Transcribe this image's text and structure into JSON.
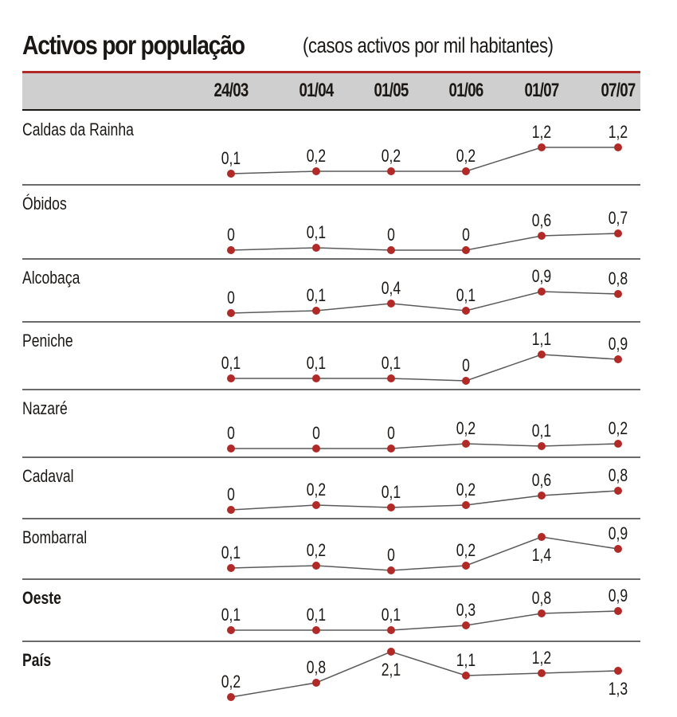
{
  "chart_data": {
    "type": "line",
    "title": "Activos por população",
    "subtitle": "(casos activos por mil habitantes)",
    "categories": [
      "24/03",
      "01/04",
      "01/05",
      "01/06",
      "01/07",
      "07/07"
    ],
    "series": [
      {
        "name": "Caldas da Rainha",
        "values": [
          "0,1",
          "0,2",
          "0,2",
          "0,2",
          "1,2",
          "1,2"
        ],
        "bold": false
      },
      {
        "name": "Óbidos",
        "values": [
          "0",
          "0,1",
          "0",
          "0",
          "0,6",
          "0,7"
        ],
        "bold": false
      },
      {
        "name": "Alcobaça",
        "values": [
          "0",
          "0,1",
          "0,4",
          "0,1",
          "0,9",
          "0,8"
        ],
        "bold": false
      },
      {
        "name": "Peniche",
        "values": [
          "0,1",
          "0,1",
          "0,1",
          "0",
          "1,1",
          "0,9"
        ],
        "bold": false
      },
      {
        "name": "Nazaré",
        "values": [
          "0",
          "0",
          "0",
          "0,2",
          "0,1",
          "0,2"
        ],
        "bold": false
      },
      {
        "name": "Cadaval",
        "values": [
          "0",
          "0,2",
          "0,1",
          "0,2",
          "0,6",
          "0,8"
        ],
        "bold": false
      },
      {
        "name": "Bombarral",
        "values": [
          "0,1",
          "0,2",
          "0",
          "0,2",
          "1,4",
          "0,9"
        ],
        "bold": false
      },
      {
        "name": "Oeste",
        "values": [
          "0,1",
          "0,1",
          "0,1",
          "0,3",
          "0,8",
          "0,9"
        ],
        "bold": true
      },
      {
        "name": "País",
        "values": [
          "0,2",
          "0,8",
          "2,1",
          "1,1",
          "1,2",
          "1,3"
        ],
        "bold": true
      }
    ],
    "colors": {
      "accent": "#b02a27",
      "line": "#5a5a5a",
      "header_bg": "#cfcfcf"
    }
  }
}
